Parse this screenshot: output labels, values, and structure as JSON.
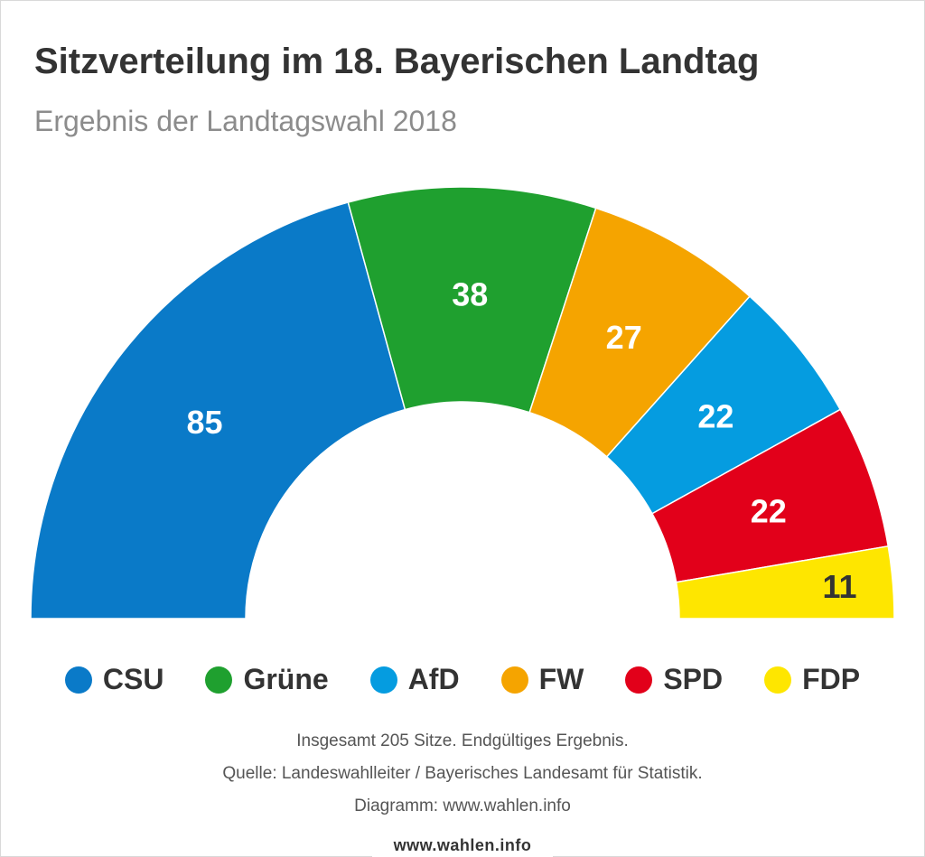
{
  "header": {
    "title": "Sitzverteilung im 18. Bayerischen Landtag",
    "subtitle": "Ergebnis der Landtagswahl 2018"
  },
  "chart_data": {
    "type": "pie",
    "variant": "parliament-semicircle",
    "title": "Sitzverteilung im 18. Bayerischen Landtag",
    "subtitle": "Ergebnis der Landtagswahl 2018",
    "total": 205,
    "slices": [
      {
        "party": "CSU",
        "seats": 85,
        "color": "#0a7ac8",
        "label_color": "#ffffff"
      },
      {
        "party": "Grüne",
        "seats": 38,
        "color": "#1fa02f",
        "label_color": "#ffffff"
      },
      {
        "party": "FW",
        "seats": 27,
        "color": "#f5a400",
        "label_color": "#ffffff"
      },
      {
        "party": "AfD",
        "seats": 22,
        "color": "#059ce0",
        "label_color": "#ffffff"
      },
      {
        "party": "SPD",
        "seats": 22,
        "color": "#e2001a",
        "label_color": "#ffffff"
      },
      {
        "party": "FDP",
        "seats": 11,
        "color": "#fee600",
        "label_color": "#333333"
      }
    ]
  },
  "legend": {
    "items": [
      {
        "label": "CSU",
        "color": "#0a7ac8"
      },
      {
        "label": "Grüne",
        "color": "#1fa02f"
      },
      {
        "label": "AfD",
        "color": "#059ce0"
      },
      {
        "label": "FW",
        "color": "#f5a400"
      },
      {
        "label": "SPD",
        "color": "#e2001a"
      },
      {
        "label": "FDP",
        "color": "#fee600"
      }
    ]
  },
  "footer": {
    "total_note": "Insgesamt 205 Sitze. Endgültiges Ergebnis.",
    "source": "Quelle: Landeswahlleiter / Bayerisches Landesamt für Statistik.",
    "credit": "Diagramm: www.wahlen.info"
  },
  "brand": {
    "text": "www.wahlen.info"
  }
}
